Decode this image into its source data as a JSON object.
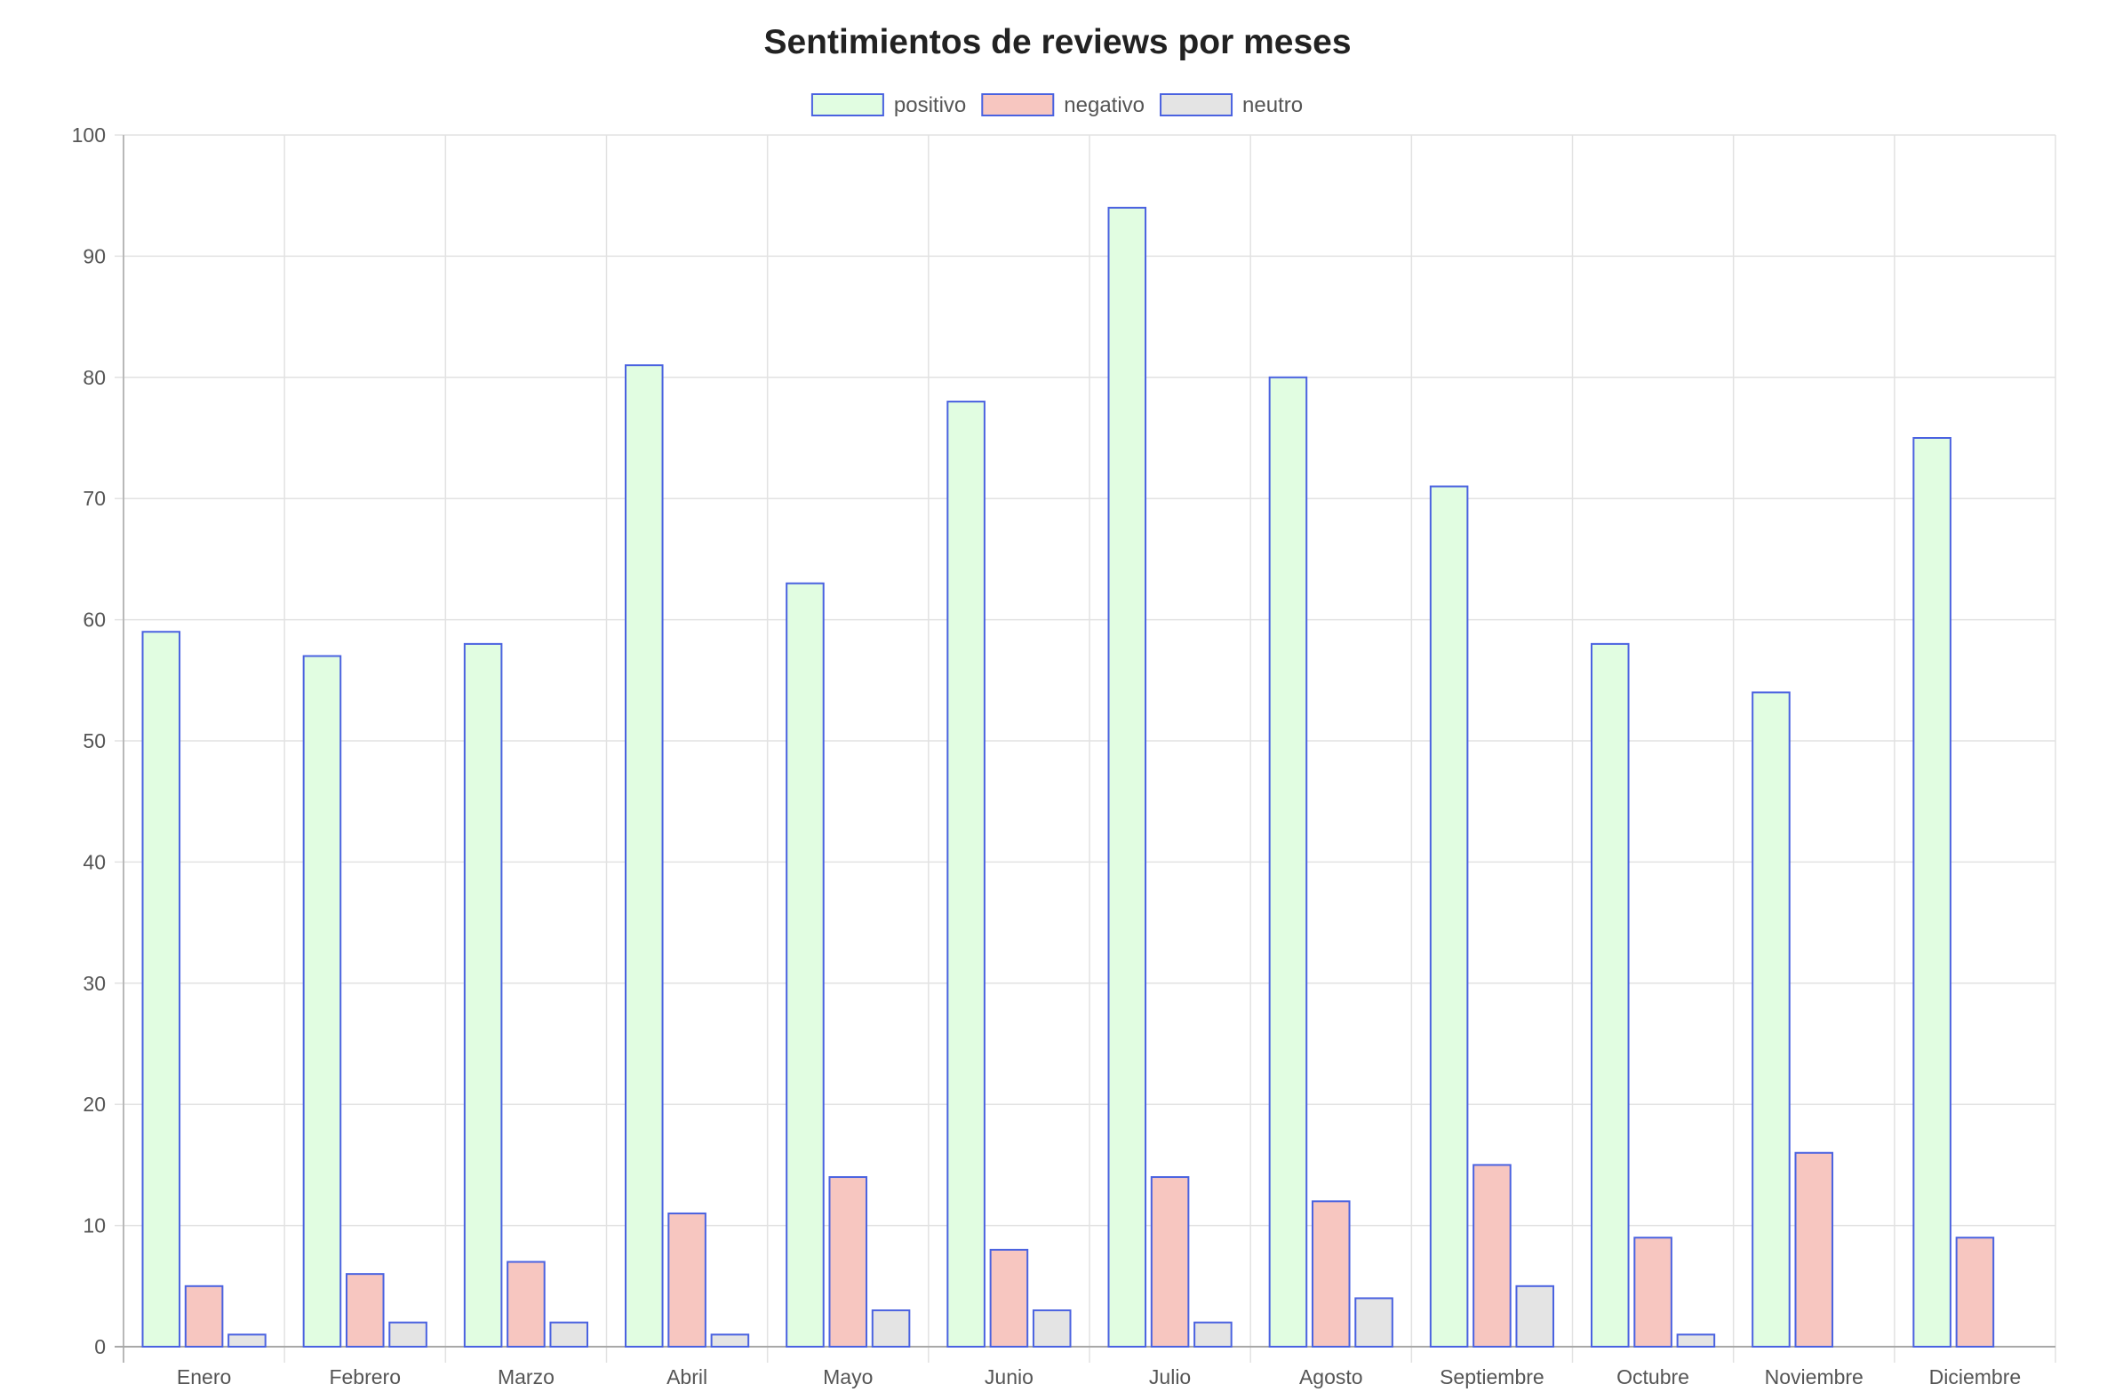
{
  "chart_data": {
    "type": "bar",
    "title": "Sentimientos de reviews por meses",
    "xlabel": "",
    "ylabel": "",
    "categories": [
      "Enero",
      "Febrero",
      "Marzo",
      "Abril",
      "Mayo",
      "Junio",
      "Julio",
      "Agosto",
      "Septiembre",
      "Octubre",
      "Noviembre",
      "Diciembre"
    ],
    "series": [
      {
        "name": "positivo",
        "color": "#e1fde1",
        "values": [
          59,
          57,
          58,
          81,
          63,
          78,
          94,
          80,
          71,
          58,
          54,
          75
        ]
      },
      {
        "name": "negativo",
        "color": "#f7c6c0",
        "values": [
          5,
          6,
          7,
          11,
          14,
          8,
          14,
          12,
          15,
          9,
          16,
          9
        ]
      },
      {
        "name": "neutro",
        "color": "#e4e4e4",
        "values": [
          1,
          2,
          2,
          1,
          3,
          3,
          2,
          4,
          5,
          1,
          0,
          0
        ]
      }
    ],
    "border_color": "#4a62e0",
    "ylim": [
      0,
      100
    ],
    "yticks": [
      0,
      10,
      20,
      30,
      40,
      50,
      60,
      70,
      80,
      90,
      100
    ],
    "grid": true,
    "legend_position": "top-center"
  }
}
